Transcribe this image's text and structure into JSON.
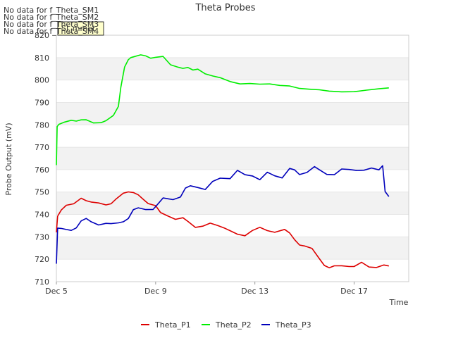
{
  "chart_data": {
    "type": "line",
    "title": "Theta Probes",
    "xlabel": "Time",
    "ylabel": "Probe Output (mV)",
    "ylim": [
      710,
      820
    ],
    "yticks": [
      710,
      720,
      730,
      740,
      750,
      760,
      770,
      780,
      790,
      800,
      810,
      820
    ],
    "xlim": [
      0,
      14.2
    ],
    "x_unit": "days since Dec 5",
    "xticks": [
      {
        "value": 0,
        "label": "Dec 5"
      },
      {
        "value": 4,
        "label": "Dec 9"
      },
      {
        "value": 8,
        "label": "Dec 13"
      },
      {
        "value": 12,
        "label": "Dec 17"
      }
    ],
    "no_data_messages": [
      "No data for f_Theta_SM1",
      "No data for f_Theta_SM2",
      "No data for f_Theta_SM3",
      "No data for f_Theta_SM4"
    ],
    "badge_label": "SI_mmet",
    "legend_position": "bottom-center",
    "series": [
      {
        "name": "Theta_P1",
        "color": "#dd0000",
        "x": [
          0,
          0.05,
          0.2,
          0.4,
          0.7,
          1.0,
          1.2,
          1.4,
          1.7,
          2.0,
          2.2,
          2.4,
          2.7,
          2.9,
          3.1,
          3.3,
          3.5,
          3.7,
          4.0,
          4.2,
          4.5,
          4.8,
          5.1,
          5.3,
          5.6,
          5.9,
          6.2,
          6.5,
          6.8,
          7.0,
          7.3,
          7.6,
          7.9,
          8.2,
          8.5,
          8.8,
          9.2,
          9.4,
          9.6,
          9.8,
          10.0,
          10.3,
          10.6,
          10.8,
          11.0,
          11.2,
          11.5,
          11.8,
          12.0,
          12.3,
          12.6,
          12.9,
          13.2,
          13.4
        ],
        "values": [
          732,
          739,
          742,
          744,
          745,
          747,
          746,
          745.5,
          745,
          744.5,
          745,
          747,
          749.5,
          750.2,
          750,
          749,
          747,
          745,
          744,
          741,
          739,
          738,
          738.5,
          737,
          734,
          735,
          736,
          735,
          734,
          733,
          731,
          730.5,
          733,
          734,
          733,
          732,
          733.5,
          732,
          729,
          726.5,
          726,
          725,
          720,
          717,
          716,
          717,
          717,
          717,
          717,
          718.5,
          716.5,
          716.5,
          717.2,
          717
        ],
        "end_value": 717
      },
      {
        "name": "Theta_P2",
        "color": "#00ee00",
        "x": [
          0,
          0.03,
          0.1,
          0.3,
          0.6,
          0.8,
          1.0,
          1.2,
          1.5,
          1.8,
          2.0,
          2.3,
          2.5,
          2.6,
          2.75,
          2.9,
          3.0,
          3.2,
          3.4,
          3.6,
          3.8,
          4.0,
          4.3,
          4.6,
          4.9,
          5.1,
          5.3,
          5.5,
          5.7,
          6.0,
          6.3,
          6.6,
          7.0,
          7.4,
          7.8,
          8.2,
          8.6,
          9.0,
          9.4,
          9.8,
          10.2,
          10.6,
          11.0,
          11.5,
          12.0,
          12.5,
          13.0,
          13.4
        ],
        "values": [
          762,
          779,
          780,
          781,
          782,
          781.5,
          782,
          782,
          781,
          781,
          782,
          784,
          788,
          797,
          806,
          809,
          810,
          810.5,
          811,
          810.5,
          809.5,
          810,
          810.5,
          807,
          805.5,
          805,
          805.5,
          804.5,
          805,
          802.5,
          802,
          801,
          799.5,
          798.5,
          798.5,
          798,
          798,
          797.5,
          797.5,
          796.5,
          796,
          795.5,
          794.8,
          794.8,
          795,
          795.3,
          796,
          796.5
        ],
        "end_value": 796.5
      },
      {
        "name": "Theta_P3",
        "color": "#0000bb",
        "x": [
          0,
          0.05,
          0.2,
          0.4,
          0.6,
          0.8,
          1.0,
          1.2,
          1.4,
          1.7,
          2.0,
          2.2,
          2.5,
          2.7,
          2.9,
          3.1,
          3.3,
          3.6,
          3.9,
          4.1,
          4.3,
          4.5,
          4.7,
          5.0,
          5.2,
          5.4,
          5.7,
          6.0,
          6.3,
          6.6,
          7.0,
          7.3,
          7.6,
          7.9,
          8.2,
          8.5,
          8.8,
          9.1,
          9.4,
          9.6,
          9.8,
          10.1,
          10.4,
          10.6,
          10.9,
          11.2,
          11.5,
          11.8,
          12.1,
          12.4,
          12.7,
          13.0,
          13.15,
          13.25,
          13.4
        ],
        "values": [
          718,
          734,
          734,
          733.5,
          733,
          734,
          737,
          738,
          736.5,
          735.5,
          736,
          736,
          736,
          736.5,
          738,
          742,
          743,
          742,
          742.5,
          745,
          747.5,
          747,
          746.5,
          748,
          752,
          753,
          752,
          751,
          755,
          756,
          756,
          759.5,
          758,
          757,
          755.5,
          759,
          757,
          756.5,
          760.5,
          760,
          758,
          758.5,
          761.5,
          760,
          758,
          757.5,
          760.5,
          760,
          759.5,
          760,
          760.5,
          760,
          762,
          750,
          748
        ],
        "end_value": 748
      }
    ]
  }
}
